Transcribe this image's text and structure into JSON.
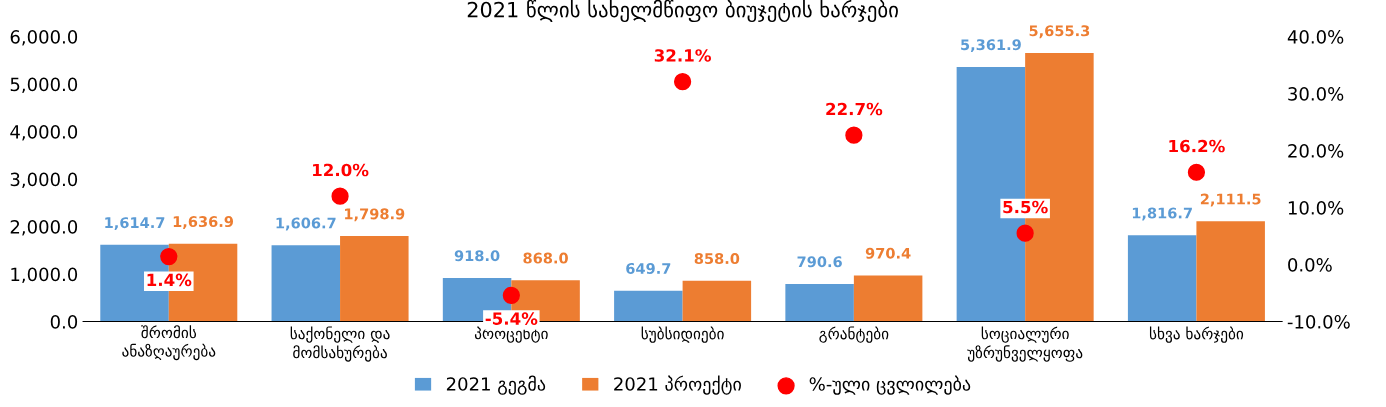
{
  "chart_data": {
    "type": "bar",
    "title": "2021 წლის სახელმწიფო ბიუჯეტის ხარჯები",
    "categories": [
      "შრომის\nანაზღაურება",
      "საქონელი და\nმომსახურება",
      "პროცენტი",
      "სუბსიდიები",
      "გრანტები",
      "სოციალური\nუზრუნველყოფა",
      "სხვა ხარჯები"
    ],
    "series": [
      {
        "name": "2021 გეგმა",
        "color": "#5b9bd5",
        "values": [
          1614.7,
          1606.7,
          918.0,
          649.7,
          790.6,
          5361.9,
          1816.7
        ],
        "value_labels": [
          "1,614.7",
          "1,606.7",
          "918.0",
          "649.7",
          "790.6",
          "5,361.9",
          "1,816.7"
        ]
      },
      {
        "name": "2021 პროექტი",
        "color": "#ed7d31",
        "values": [
          1636.9,
          1798.9,
          868.0,
          858.0,
          970.4,
          5655.3,
          2111.5
        ],
        "value_labels": [
          "1,636.9",
          "1,798.9",
          "868.0",
          "858.0",
          "970.4",
          "5,655.3",
          "2,111.5"
        ]
      },
      {
        "name": "%-ული ცვლილება",
        "type": "scatter",
        "axis": "y2",
        "color": "#ff0000",
        "marker": "circle",
        "values": [
          1.4,
          12.0,
          -5.4,
          32.1,
          22.7,
          5.5,
          16.2
        ],
        "value_labels": [
          "1.4%",
          "12.0%",
          "-5.4%",
          "32.1%",
          "22.7%",
          "5.5%",
          "16.2%"
        ]
      }
    ],
    "ylim": [
      0,
      6000
    ],
    "yticks": [
      {
        "value": 0,
        "label": "0.0"
      },
      {
        "value": 1000,
        "label": "1,000.0"
      },
      {
        "value": 2000,
        "label": "2,000.0"
      },
      {
        "value": 3000,
        "label": "3,000.0"
      },
      {
        "value": 4000,
        "label": "4,000.0"
      },
      {
        "value": 5000,
        "label": "5,000.0"
      },
      {
        "value": 6000,
        "label": "6,000.0"
      }
    ],
    "y2lim": [
      -10,
      40
    ],
    "y2ticks": [
      {
        "value": -10,
        "label": "-10.0%"
      },
      {
        "value": 0,
        "label": "0.0%"
      },
      {
        "value": 10,
        "label": "10.0%"
      },
      {
        "value": 20,
        "label": "20.0%"
      },
      {
        "value": 30,
        "label": "30.0%"
      },
      {
        "value": 40,
        "label": "40.0%"
      }
    ],
    "legend": "bottom",
    "grid": false
  }
}
